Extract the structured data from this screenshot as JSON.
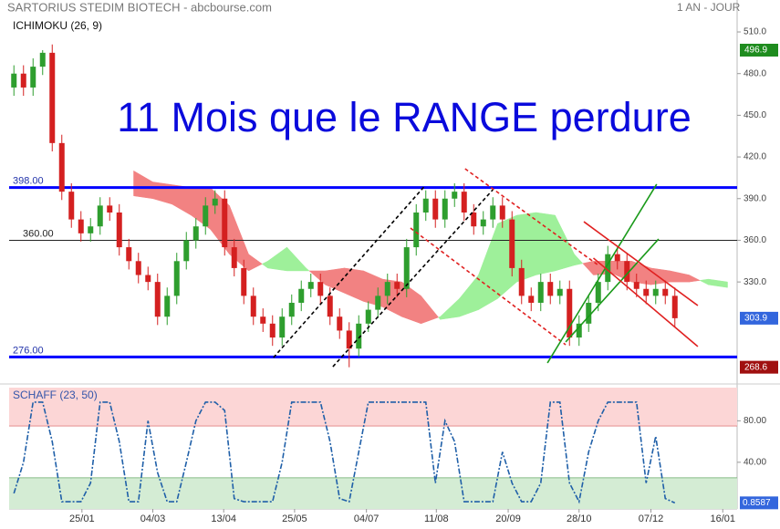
{
  "chart_data": [
    {
      "type": "candlestick",
      "title": "SARTORIUS STEDIM BIOTECH - abcbourse.com",
      "subtitle": "1 AN - JOUR",
      "indicator_label": "ICHIMOKU (26, 9)",
      "annotation": "11 Mois que le RANGE perdure",
      "xlim": [
        0,
        76
      ],
      "xticks": [
        {
          "value": 7.6,
          "label": "25/01"
        },
        {
          "value": 15,
          "label": "04/03"
        },
        {
          "value": 22.4,
          "label": "13/04"
        },
        {
          "value": 29.8,
          "label": "25/05"
        },
        {
          "value": 37.3,
          "label": "04/07"
        },
        {
          "value": 44.6,
          "label": "11/08"
        },
        {
          "value": 52.1,
          "label": "20/09"
        },
        {
          "value": 59.5,
          "label": "28/10"
        },
        {
          "value": 67,
          "label": "07/12"
        },
        {
          "value": 74.5,
          "label": "16/01"
        }
      ],
      "ylim": [
        257.2,
        533
      ],
      "yticks": [
        {
          "value": 510,
          "label": "510.0"
        },
        {
          "value": 480,
          "label": "480.0"
        },
        {
          "value": 450,
          "label": "450.0"
        },
        {
          "value": 420,
          "label": "420.0"
        },
        {
          "value": 390,
          "label": "390.0"
        },
        {
          "value": 360,
          "label": "360.0"
        },
        {
          "value": 330,
          "label": "330.0"
        }
      ],
      "up_color": "#2e9e2e",
      "down_color": "#d42020",
      "candles": {
        "open": [
          470,
          480,
          470,
          485,
          495,
          430,
          395,
          375,
          365,
          370,
          385,
          380,
          355,
          345,
          335,
          330,
          305,
          320,
          345,
          360,
          370,
          385,
          390,
          355,
          340,
          320,
          305,
          300,
          290,
          305,
          315,
          325,
          330,
          320,
          305,
          295,
          282,
          300,
          310,
          320,
          330,
          325,
          355,
          380,
          390,
          375,
          390,
          395,
          380,
          370,
          375,
          385,
          375,
          340,
          320,
          315,
          330,
          320,
          325,
          290,
          300,
          315,
          330,
          350,
          345,
          330,
          325,
          320,
          325,
          320
        ],
        "high": [
          486,
          486,
          491,
          496.9,
          501,
          436,
          401,
          381,
          376,
          391,
          391,
          386,
          361,
          351,
          341,
          336,
          326,
          351,
          366,
          376,
          391,
          396,
          396,
          361,
          346,
          326,
          311,
          306,
          311,
          321,
          331,
          336,
          336,
          326,
          311,
          301,
          306,
          316,
          326,
          336,
          336,
          361,
          386,
          396,
          396,
          396,
          401,
          401,
          386,
          381,
          391,
          391,
          381,
          346,
          326,
          336,
          336,
          331,
          331,
          306,
          321,
          336,
          356,
          356,
          351,
          336,
          331,
          331,
          331,
          326
        ],
        "low": [
          464,
          464,
          464,
          479,
          424,
          389,
          369,
          359,
          359,
          364,
          374,
          349,
          339,
          329,
          324,
          299,
          299,
          314,
          339,
          354,
          364,
          379,
          349,
          334,
          314,
          299,
          294,
          284,
          284,
          299,
          309,
          319,
          314,
          299,
          289,
          268.6,
          276,
          294,
          304,
          314,
          319,
          319,
          349,
          374,
          369,
          369,
          384,
          374,
          364,
          364,
          369,
          369,
          334,
          314,
          309,
          309,
          314,
          314,
          284,
          284,
          294,
          309,
          324,
          339,
          324,
          319,
          314,
          314,
          314,
          297.9
        ],
        "close": [
          480,
          470,
          485,
          495,
          430,
          395,
          375,
          365,
          370,
          385,
          380,
          355,
          345,
          335,
          330,
          305,
          320,
          345,
          360,
          370,
          385,
          390,
          355,
          340,
          320,
          305,
          300,
          290,
          305,
          315,
          325,
          330,
          320,
          305,
          295,
          282,
          300,
          310,
          320,
          330,
          325,
          355,
          380,
          390,
          375,
          390,
          395,
          380,
          370,
          375,
          385,
          375,
          340,
          320,
          315,
          330,
          320,
          325,
          290,
          300,
          315,
          330,
          350,
          345,
          330,
          325,
          320,
          325,
          320,
          303.9
        ]
      },
      "cloud": {
        "x": [
          13,
          15,
          17,
          19,
          21,
          23,
          25,
          27,
          29,
          31,
          33,
          35,
          37,
          39,
          41,
          43,
          45,
          47,
          49,
          51,
          53,
          55,
          57,
          59,
          61,
          63,
          65,
          67,
          69,
          71,
          73,
          75
        ],
        "span_a": [
          392,
          390,
          386,
          378,
          368,
          350,
          338,
          345,
          355,
          340,
          328,
          322,
          316,
          312,
          305,
          300,
          305,
          318,
          335,
          372,
          378,
          380,
          378,
          350,
          335,
          336,
          330,
          328,
          330,
          330,
          332,
          330
        ],
        "span_b": [
          410,
          402,
          400,
          398,
          398,
          385,
          350,
          340,
          338,
          338,
          338,
          340,
          338,
          332,
          330,
          320,
          303,
          305,
          310,
          318,
          330,
          335,
          338,
          342,
          345,
          345,
          345,
          340,
          338,
          335,
          328,
          326
        ],
        "bull_color": "#9ef09a",
        "bear_color": "#f28282"
      },
      "levels": [
        {
          "value": 398,
          "label": "398.00",
          "color": "#0000ff",
          "width": 3
        },
        {
          "value": 360,
          "label": "360.00",
          "color": "#222222",
          "width": 1
        },
        {
          "value": 276,
          "label": "276.00",
          "color": "#0000ff",
          "width": 3
        }
      ],
      "trendlines": [
        {
          "x": [
            27.6,
            43.3
          ],
          "y": [
            275.6,
            398.4
          ],
          "color": "#000000",
          "dashed": true
        },
        {
          "x": [
            33.8,
            50.5
          ],
          "y": [
            269,
            396.4
          ],
          "color": "#000000",
          "dashed": true
        },
        {
          "x": [
            47.6,
            61.4
          ],
          "y": [
            411.5,
            342.6
          ],
          "color": "#e02020",
          "dashed": true
        },
        {
          "x": [
            41.9,
            58.1
          ],
          "y": [
            368.8,
            284.8
          ],
          "color": "#e02020",
          "dashed": true
        },
        {
          "x": [
            56.2,
            67.6
          ],
          "y": [
            271.7,
            400.4
          ],
          "color": "#1a9a1a",
          "dashed": false
        },
        {
          "x": [
            58.1,
            67.8
          ],
          "y": [
            286.8,
            360.9
          ],
          "color": "#1a9a1a",
          "dashed": false
        },
        {
          "x": [
            60,
            71.9
          ],
          "y": [
            373.4,
            313
          ],
          "color": "#e02020",
          "dashed": false
        },
        {
          "x": [
            61,
            71.9
          ],
          "y": [
            347.2,
            283.5
          ],
          "color": "#e02020",
          "dashed": false
        }
      ],
      "price_labels": [
        {
          "value": 496.9,
          "color": "#1e8c1e"
        },
        {
          "value": 303.9,
          "color": "#3366dd"
        },
        {
          "value": 268.6,
          "color": "#a01010"
        }
      ]
    },
    {
      "type": "line",
      "title": "SCHAFF (23, 50)",
      "xlim": [
        0,
        76
      ],
      "ylim": [
        -5,
        112
      ],
      "yticks": [
        {
          "value": 80,
          "label": "80.00"
        },
        {
          "value": 40,
          "label": "40.00"
        }
      ],
      "zones": [
        {
          "from": 75,
          "to": 112,
          "color": "#fcd6d6",
          "edge": "#e08080"
        },
        {
          "from": -5,
          "to": 25,
          "color": "#d4ecd4",
          "edge": "#66aa66"
        }
      ],
      "color": "#1f5fa8",
      "values": [
        10,
        40,
        98,
        98,
        60,
        2,
        2,
        2,
        20,
        98,
        98,
        60,
        2,
        2,
        80,
        30,
        2,
        2,
        40,
        80,
        98,
        98,
        90,
        5,
        2,
        2,
        2,
        2,
        40,
        98,
        98,
        98,
        98,
        60,
        5,
        2,
        50,
        98,
        98,
        98,
        98,
        98,
        98,
        98,
        20,
        80,
        60,
        2,
        2,
        2,
        2,
        50,
        20,
        2,
        2,
        20,
        98,
        98,
        20,
        2,
        50,
        80,
        98,
        98,
        98,
        98,
        20,
        65,
        5,
        0.8587
      ],
      "last_label": {
        "value": 0.8587,
        "color": "#3366dd"
      }
    }
  ]
}
